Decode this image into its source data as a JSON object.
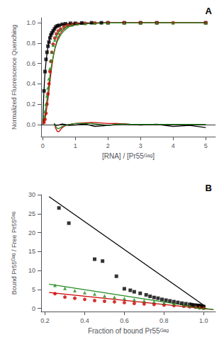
{
  "chart_data": [
    {
      "type": "scatter",
      "title": "A",
      "xlabel": "[RNA] / [Pr55ᴳᵃᵍ]",
      "ylabel": "Normalized Fluorescence Quenching",
      "xlim": [
        -0.05,
        5.3
      ],
      "ylim": [
        -0.12,
        1.05
      ],
      "xticks": [
        0,
        1,
        2,
        3,
        4,
        5
      ],
      "yticks": [
        {
          "value": 0.0,
          "label": "0.0"
        },
        0.2,
        0.4,
        0.6,
        0.8,
        {
          "value": 1.0,
          "label": "1.0"
        }
      ],
      "grid": false,
      "hline": 0,
      "series": [
        {
          "type": "line",
          "color": "#000000",
          "line_style": "solid",
          "x": [
            0.0,
            0.03,
            0.06,
            0.09,
            0.12,
            0.15,
            0.18,
            0.21,
            0.25,
            0.3,
            0.35,
            0.4,
            0.5,
            0.6,
            0.8,
            1.0,
            1.5,
            2.0,
            3.0,
            5.0
          ],
          "values": [
            0.0,
            0.28,
            0.46,
            0.58,
            0.67,
            0.74,
            0.8,
            0.84,
            0.88,
            0.91,
            0.94,
            0.96,
            0.975,
            0.983,
            0.992,
            0.996,
            0.999,
            1.0,
            1.0,
            1.0
          ]
        },
        {
          "type": "line",
          "color": "#cc0000",
          "line_style": "solid",
          "x": [
            0.0,
            0.04,
            0.07,
            0.1,
            0.14,
            0.18,
            0.22,
            0.27,
            0.32,
            0.38,
            0.45,
            0.55,
            0.65,
            0.8,
            1.0,
            1.5,
            2.0,
            3.0,
            5.0
          ],
          "values": [
            0.0,
            0.02,
            0.05,
            0.11,
            0.2,
            0.3,
            0.42,
            0.55,
            0.66,
            0.76,
            0.84,
            0.9,
            0.94,
            0.97,
            0.985,
            0.996,
            1.0,
            1.0,
            1.0
          ]
        },
        {
          "type": "line",
          "color": "#228B22",
          "line_style": "solid",
          "x": [
            0.0,
            0.04,
            0.07,
            0.1,
            0.14,
            0.18,
            0.22,
            0.27,
            0.32,
            0.38,
            0.45,
            0.55,
            0.65,
            0.8,
            1.0,
            1.5,
            2.0,
            3.0,
            5.0
          ],
          "values": [
            0.0,
            0.05,
            0.1,
            0.18,
            0.27,
            0.37,
            0.48,
            0.58,
            0.67,
            0.75,
            0.82,
            0.88,
            0.92,
            0.96,
            0.98,
            0.993,
            0.998,
            1.0,
            1.0
          ]
        },
        {
          "type": "scatter",
          "color": "#000000",
          "marker": "square",
          "x": [
            0.04,
            0.07,
            0.1,
            0.13,
            0.16,
            0.19,
            0.22,
            0.25,
            0.28,
            0.32,
            0.36,
            0.4,
            0.45,
            0.5,
            0.6,
            0.7,
            0.85,
            1.0,
            1.2,
            1.5,
            1.8,
            2.0,
            2.5,
            3.0,
            3.5,
            5.0
          ],
          "values": [
            0.33,
            0.52,
            0.64,
            0.71,
            0.77,
            0.81,
            0.85,
            0.88,
            0.9,
            0.92,
            0.94,
            0.96,
            0.97,
            0.975,
            0.985,
            0.99,
            0.995,
            0.995,
            0.998,
            1.0,
            1.0,
            1.0,
            1.0,
            1.0,
            1.0,
            1.0
          ]
        },
        {
          "type": "scatter",
          "color": "#cc0000",
          "marker": "circle",
          "x": [
            0.04,
            0.07,
            0.1,
            0.13,
            0.16,
            0.19,
            0.22,
            0.25,
            0.28,
            0.32,
            0.37,
            0.42,
            0.48,
            0.55,
            0.65,
            0.75,
            0.9,
            1.05,
            1.3,
            1.6,
            2.0,
            2.5,
            3.0,
            3.5,
            4.0,
            5.0
          ],
          "values": [
            0.02,
            0.05,
            0.11,
            0.2,
            0.3,
            0.4,
            0.52,
            0.62,
            0.71,
            0.79,
            0.85,
            0.89,
            0.92,
            0.94,
            0.96,
            0.975,
            0.985,
            0.99,
            0.995,
            0.998,
            1.0,
            1.0,
            1.0,
            1.0,
            1.0,
            1.0
          ]
        },
        {
          "type": "scatter",
          "color": "#228B22",
          "marker": "triangle",
          "x": [
            0.04,
            0.07,
            0.1,
            0.13,
            0.16,
            0.19,
            0.22,
            0.25,
            0.28,
            0.32,
            0.37,
            0.42,
            0.48,
            0.55,
            0.65,
            0.75,
            0.9,
            1.05,
            1.3,
            1.6,
            2.0,
            2.5,
            3.0,
            3.5,
            4.0,
            5.0
          ],
          "values": [
            0.08,
            0.13,
            0.2,
            0.28,
            0.36,
            0.45,
            0.55,
            0.63,
            0.71,
            0.78,
            0.83,
            0.87,
            0.9,
            0.93,
            0.95,
            0.97,
            0.98,
            0.99,
            0.995,
            0.998,
            1.0,
            1.0,
            1.0,
            1.0,
            1.0,
            1.0
          ]
        },
        {
          "type": "line",
          "color": "#000000",
          "line_style": "solid",
          "x": [
            0.35,
            0.4,
            0.5,
            0.6,
            0.7,
            0.8,
            1.0,
            1.3,
            1.6,
            2.0,
            2.5,
            3.0,
            3.5,
            4.0,
            4.5,
            5.0
          ],
          "values": [
            0.01,
            -0.01,
            -0.005,
            0.005,
            0.0,
            -0.01,
            -0.005,
            0.005,
            -0.02,
            -0.01,
            0.005,
            -0.005,
            0.002,
            -0.02,
            -0.01,
            -0.03
          ]
        },
        {
          "type": "line",
          "color": "#cc0000",
          "line_style": "solid",
          "x": [
            0.35,
            0.4,
            0.45,
            0.5,
            0.55,
            0.6,
            0.7,
            0.8,
            1.0,
            1.5,
            2.0,
            2.3,
            2.7,
            3.2,
            4.0,
            5.0
          ],
          "values": [
            0.01,
            -0.04,
            -0.07,
            -0.07,
            -0.05,
            -0.03,
            -0.01,
            0.0,
            0.01,
            0.02,
            0.01,
            0.01,
            0.0,
            0.0,
            0.0,
            0.0
          ]
        },
        {
          "type": "line",
          "color": "#228B22",
          "line_style": "solid",
          "x": [
            0.35,
            0.4,
            0.45,
            0.5,
            0.55,
            0.6,
            0.7,
            0.8,
            1.0,
            1.5,
            2.0,
            2.3,
            2.7,
            3.2,
            4.0,
            5.0
          ],
          "values": [
            0.01,
            -0.02,
            -0.04,
            -0.04,
            -0.03,
            -0.02,
            -0.01,
            0.0,
            0.01,
            0.01,
            -0.01,
            0.005,
            0.0,
            0.0,
            0.0,
            0.0
          ]
        }
      ]
    },
    {
      "type": "scatter",
      "title": "B",
      "xlabel": "Fraction of bound Pr55ᴳᵃᵍ",
      "ylabel": "Bound Pr55ᴳᵃᵍ / Free Pr55ᴳᵃᵍ",
      "xlim": [
        0.18,
        1.06
      ],
      "ylim": [
        -0.8,
        30
      ],
      "xticks": [
        0.2,
        0.4,
        0.6,
        0.8,
        {
          "value": 1.0,
          "label": "1.0"
        }
      ],
      "yticks": [
        0,
        5,
        10,
        15,
        20,
        25,
        30
      ],
      "grid": false,
      "series": [
        {
          "type": "line",
          "color": "#000000",
          "line_style": "solid",
          "x": [
            0.22,
            1.01
          ],
          "values": [
            29.5,
            0.5
          ]
        },
        {
          "type": "line",
          "color": "#cc0000",
          "line_style": "solid",
          "x": [
            0.22,
            1.05
          ],
          "values": [
            4.2,
            -0.3
          ]
        },
        {
          "type": "line",
          "color": "#228B22",
          "line_style": "solid",
          "x": [
            0.22,
            1.05
          ],
          "values": [
            6.4,
            -0.3
          ]
        },
        {
          "type": "scatter",
          "color": "#000000",
          "marker": "square",
          "x": [
            0.27,
            0.32,
            0.45,
            0.49,
            0.56,
            0.6,
            0.63,
            0.65,
            0.68,
            0.71,
            0.73,
            0.75,
            0.77,
            0.79,
            0.81,
            0.83,
            0.85,
            0.87,
            0.89,
            0.91,
            0.93,
            0.94,
            0.95,
            0.96,
            0.97,
            0.975,
            0.98,
            0.985,
            0.99,
            0.995,
            1.0
          ],
          "values": [
            26.5,
            22.5,
            13.0,
            12.5,
            8.5,
            5.2,
            4.8,
            4.4,
            4.0,
            3.6,
            3.2,
            2.9,
            2.7,
            2.4,
            2.2,
            2.0,
            1.8,
            1.6,
            1.4,
            1.25,
            1.1,
            1.0,
            0.9,
            0.85,
            0.8,
            0.75,
            0.7,
            0.65,
            0.6,
            0.55,
            0.5
          ]
        },
        {
          "type": "scatter",
          "color": "#cc0000",
          "marker": "circle",
          "x": [
            0.25,
            0.3,
            0.35,
            0.4,
            0.45,
            0.5,
            0.55,
            0.6,
            0.65,
            0.7,
            0.75,
            0.8,
            0.85,
            0.9,
            0.93,
            0.96,
            0.98,
            1.0
          ],
          "values": [
            3.9,
            3.0,
            2.7,
            2.4,
            2.1,
            1.9,
            1.75,
            1.55,
            1.35,
            1.2,
            1.05,
            0.9,
            0.75,
            0.6,
            0.45,
            0.35,
            0.2,
            0.1
          ]
        },
        {
          "type": "scatter",
          "color": "#228B22",
          "marker": "triangle",
          "x": [
            0.25,
            0.3,
            0.35,
            0.4,
            0.45,
            0.5,
            0.55,
            0.6,
            0.65,
            0.7,
            0.75,
            0.8,
            0.85,
            0.9,
            0.93,
            0.96,
            0.98,
            1.0
          ],
          "values": [
            6.1,
            5.3,
            4.7,
            4.2,
            3.8,
            3.3,
            3.0,
            2.65,
            2.35,
            2.05,
            1.8,
            1.5,
            1.2,
            0.95,
            0.7,
            0.45,
            0.25,
            0.1
          ]
        }
      ]
    }
  ]
}
